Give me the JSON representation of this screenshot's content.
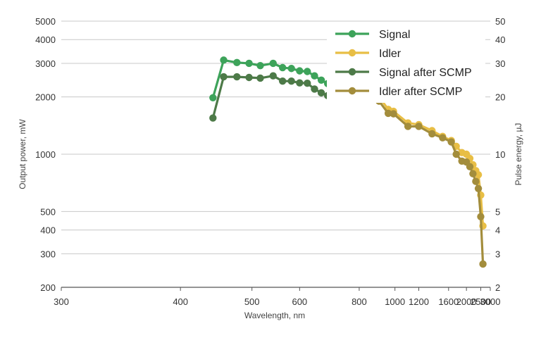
{
  "chart_data": {
    "type": "line",
    "title": "",
    "xlabel": "Wavelength, nm",
    "ylabel": "Output power, mW",
    "y2label": "Pulse energy, µJ",
    "xscale": "reciprocal",
    "yscale": "log",
    "xlim": [
      300,
      3000
    ],
    "ylim": [
      200,
      5000
    ],
    "y2lim": [
      2,
      50
    ],
    "xticks": [
      300,
      400,
      500,
      600,
      800,
      1000,
      1200,
      1600,
      2000,
      2500,
      3000
    ],
    "yticks": [
      200,
      300,
      400,
      500,
      1000,
      2000,
      3000,
      4000,
      5000
    ],
    "y2ticks": [
      2,
      3,
      4,
      5,
      10,
      20,
      30,
      40,
      50
    ],
    "grid": "horizontal",
    "legend_position": "top-right",
    "series": [
      {
        "name": "Signal",
        "color": "#3da35a",
        "x": [
          440,
          455,
          475,
          495,
          515,
          540,
          560,
          580,
          600,
          620,
          640,
          660,
          680,
          700,
          720
        ],
        "y": [
          1980,
          3120,
          3030,
          3000,
          2920,
          3000,
          2850,
          2820,
          2740,
          2720,
          2580,
          2450,
          2350,
          2400,
          2330
        ]
      },
      {
        "name": "Idler",
        "color": "#e8be45",
        "x": [
          900,
          955,
          990,
          1100,
          1200,
          1350,
          1500,
          1650,
          1750,
          1880,
          2000,
          2100,
          2200,
          2300,
          2400,
          2500,
          2600
        ],
        "y": [
          2000,
          1720,
          1680,
          1460,
          1430,
          1330,
          1240,
          1180,
          1100,
          1020,
          1000,
          950,
          880,
          820,
          780,
          610,
          420
        ]
      },
      {
        "name": "Signal after SCMP",
        "color": "#4d7a48",
        "x": [
          440,
          455,
          475,
          495,
          515,
          540,
          560,
          580,
          600,
          620,
          640,
          660,
          680,
          700,
          720
        ],
        "y": [
          1550,
          2550,
          2550,
          2530,
          2510,
          2580,
          2420,
          2420,
          2370,
          2360,
          2200,
          2100,
          2030,
          2080,
          2030
        ]
      },
      {
        "name": "Idler after SCMP",
        "color": "#a38d3c",
        "x": [
          900,
          955,
          990,
          1100,
          1200,
          1350,
          1500,
          1650,
          1750,
          1880,
          2000,
          2100,
          2200,
          2300,
          2400,
          2500,
          2600
        ],
        "y": [
          1900,
          1640,
          1630,
          1400,
          1400,
          1280,
          1220,
          1160,
          1000,
          920,
          910,
          860,
          790,
          720,
          660,
          470,
          265
        ]
      }
    ]
  }
}
